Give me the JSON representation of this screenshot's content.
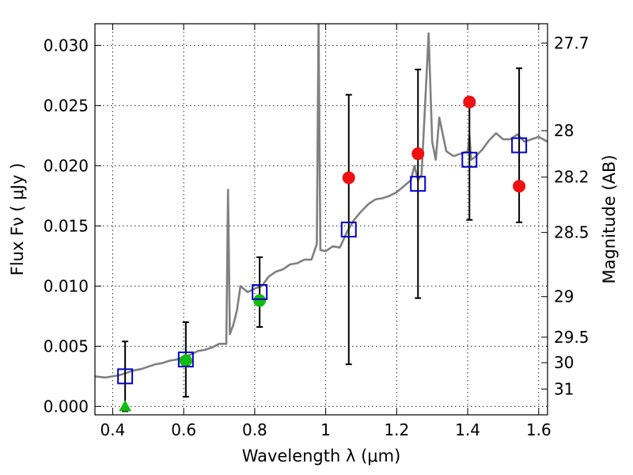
{
  "chart_data": {
    "type": "scatter",
    "title": "",
    "xlabel": "Wavelength  λ (μm)",
    "ylabel_left": "Flux  Fν  ( μJy )",
    "ylabel_right": "Magnitude (AB)",
    "xlim": [
      0.35,
      1.625
    ],
    "ylim": [
      -0.0007,
      0.0318
    ],
    "xticks": [
      0.4,
      0.6,
      0.8,
      1.0,
      1.2,
      1.4,
      1.6
    ],
    "xtick_labels": [
      "0.4",
      "0.6",
      "0.8",
      "1",
      "1.2",
      "1.4",
      "1.6"
    ],
    "yticks": [
      0.0,
      0.005,
      0.01,
      0.015,
      0.02,
      0.025,
      0.03
    ],
    "ytick_labels": [
      "0.000",
      "0.005",
      "0.010",
      "0.015",
      "0.020",
      "0.025",
      "0.030"
    ],
    "mag_ticks": [
      27.7,
      28,
      28.2,
      28.5,
      29,
      29.5,
      30,
      31
    ],
    "mag_tick_labels": [
      "27.7",
      "28",
      "28.2",
      "28.5",
      "29",
      "29.5",
      "30",
      "31"
    ],
    "grid": true,
    "model_sed": {
      "color": "#808080",
      "x": [
        0.35,
        0.38,
        0.4,
        0.42,
        0.44,
        0.46,
        0.48,
        0.5,
        0.52,
        0.54,
        0.56,
        0.58,
        0.6,
        0.62,
        0.64,
        0.66,
        0.68,
        0.7,
        0.72,
        0.725,
        0.73,
        0.74,
        0.75,
        0.76,
        0.78,
        0.8,
        0.82,
        0.84,
        0.86,
        0.88,
        0.9,
        0.92,
        0.94,
        0.96,
        0.975,
        0.98,
        0.985,
        1.0,
        1.02,
        1.04,
        1.06,
        1.08,
        1.1,
        1.12,
        1.14,
        1.16,
        1.18,
        1.2,
        1.22,
        1.24,
        1.25,
        1.26,
        1.27,
        1.28,
        1.29,
        1.3,
        1.31,
        1.32,
        1.34,
        1.36,
        1.38,
        1.4,
        1.405,
        1.41,
        1.42,
        1.44,
        1.46,
        1.48,
        1.5,
        1.52,
        1.54,
        1.56,
        1.58,
        1.6,
        1.625
      ],
      "y": [
        0.0025,
        0.0024,
        0.0025,
        0.0026,
        0.0028,
        0.003,
        0.0031,
        0.0033,
        0.0035,
        0.0036,
        0.0038,
        0.0039,
        0.0041,
        0.0043,
        0.0046,
        0.0047,
        0.0049,
        0.0052,
        0.0052,
        0.018,
        0.006,
        0.0068,
        0.008,
        0.01,
        0.0095,
        0.0098,
        0.01,
        0.0108,
        0.0112,
        0.0114,
        0.0118,
        0.0119,
        0.0122,
        0.0122,
        0.0135,
        0.032,
        0.013,
        0.0129,
        0.0133,
        0.0132,
        0.0145,
        0.0155,
        0.0162,
        0.0168,
        0.0172,
        0.0173,
        0.0175,
        0.0178,
        0.0183,
        0.0188,
        0.02,
        0.0188,
        0.0192,
        0.025,
        0.031,
        0.022,
        0.0205,
        0.024,
        0.0212,
        0.0208,
        0.021,
        0.0212,
        0.0225,
        0.0205,
        0.0207,
        0.0213,
        0.0221,
        0.0227,
        0.0222,
        0.0222,
        0.0226,
        0.022,
        0.0222,
        0.0224,
        0.022
      ]
    },
    "model_photometry": {
      "marker": "open-square",
      "color": "#0000cc",
      "x": [
        0.435,
        0.606,
        0.814,
        1.065,
        1.26,
        1.405,
        1.545
      ],
      "y": [
        0.0025,
        0.0039,
        0.0095,
        0.0147,
        0.0185,
        0.0205,
        0.0217
      ],
      "yerr": [
        0.0029,
        0.0031,
        0.0029,
        0.0112,
        0.0095,
        0.005,
        0.0064
      ]
    },
    "observed_detections": {
      "marker": "circle",
      "color": "#ee1111",
      "x": [
        1.065,
        1.26,
        1.405,
        1.545
      ],
      "y": [
        0.019,
        0.021,
        0.0253,
        0.0183
      ]
    },
    "observed_green": {
      "marker": "circle",
      "color": "#11bb11",
      "x": [
        0.606,
        0.814
      ],
      "y": [
        0.0038,
        0.0088
      ]
    },
    "upper_limit": {
      "marker": "triangle-up",
      "color": "#11bb11",
      "x": [
        0.435
      ],
      "y": [
        0.0
      ]
    }
  }
}
